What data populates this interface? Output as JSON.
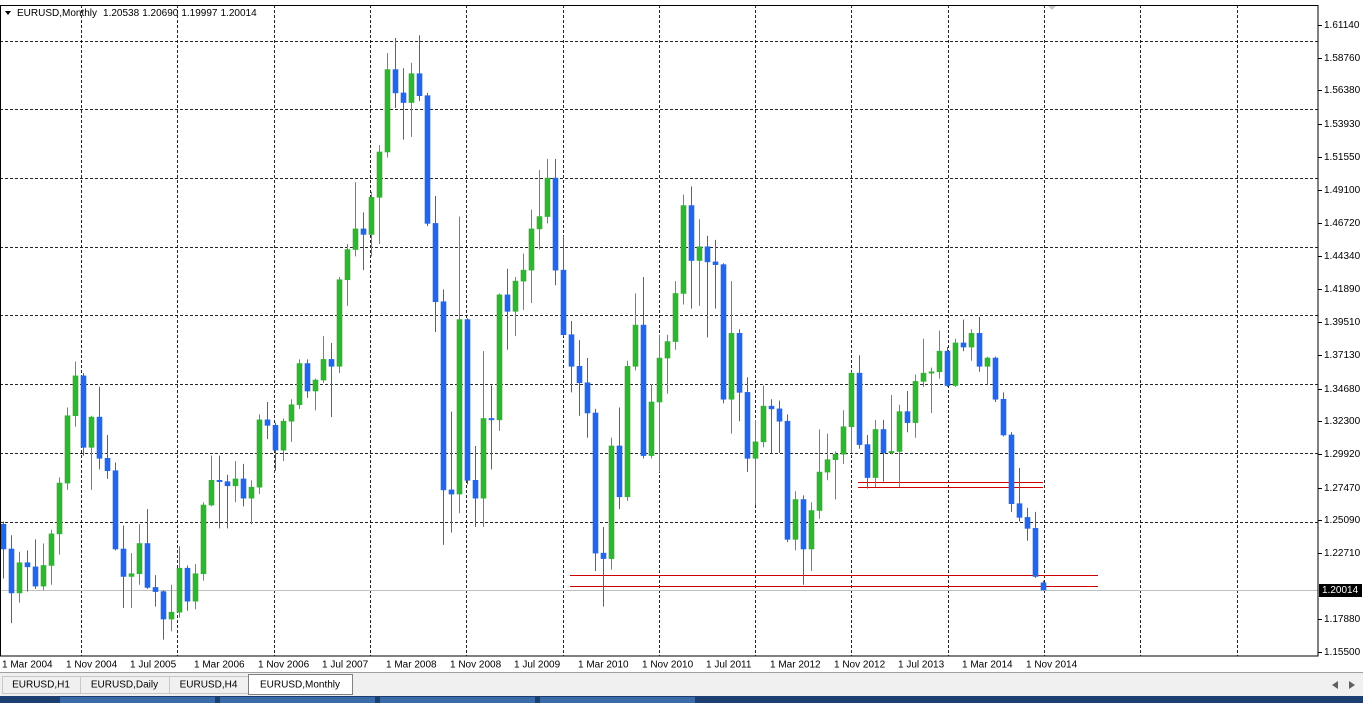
{
  "chart_data": {
    "type": "candlestick",
    "title": "EURUSD,Monthly",
    "ohlc_labels": [
      "1.20538",
      "1.20690",
      "1.19997",
      "1.20014"
    ],
    "categories": [
      "1 Mar 2004",
      null,
      null,
      null,
      null,
      null,
      null,
      null,
      "1 Nov 2004",
      null,
      null,
      null,
      null,
      null,
      null,
      null,
      "1 Jul 2005",
      null,
      null,
      null,
      null,
      null,
      null,
      null,
      "1 Mar 2006",
      null,
      null,
      null,
      null,
      null,
      null,
      null,
      "1 Nov 2006",
      null,
      null,
      null,
      null,
      null,
      null,
      null,
      "1 Jul 2007",
      null,
      null,
      null,
      null,
      null,
      null,
      null,
      "1 Mar 2008",
      null,
      null,
      null,
      null,
      null,
      null,
      null,
      "1 Nov 2008",
      null,
      null,
      null,
      null,
      null,
      null,
      null,
      "1 Jul 2009",
      null,
      null,
      null,
      null,
      null,
      null,
      null,
      "1 Mar 2010",
      null,
      null,
      null,
      null,
      null,
      null,
      null,
      "1 Nov 2010",
      null,
      null,
      null,
      null,
      null,
      null,
      null,
      "1 Jul 2011",
      null,
      null,
      null,
      null,
      null,
      null,
      null,
      "1 Mar 2012",
      null,
      null,
      null,
      null,
      null,
      null,
      null,
      "1 Nov 2012",
      null,
      null,
      null,
      null,
      null,
      null,
      null,
      "1 Jul 2013",
      null,
      null,
      null,
      null,
      null,
      null,
      null,
      "1 Mar 2014",
      null,
      null,
      null,
      null,
      null,
      null,
      null,
      "1 Nov 2014",
      null,
      null
    ],
    "open": [
      1.248,
      1.23,
      1.198,
      1.22,
      1.217,
      1.203,
      1.218,
      1.241,
      1.278,
      1.327,
      1.356,
      1.304,
      1.326,
      1.296,
      1.287,
      1.23,
      1.21,
      1.212,
      1.234,
      1.202,
      1.199,
      1.179,
      1.184,
      1.216,
      1.192,
      1.212,
      1.262,
      1.28,
      1.279,
      1.276,
      1.281,
      1.267,
      1.275,
      1.324,
      1.32,
      1.302,
      1.323,
      1.335,
      1.365,
      1.345,
      1.353,
      1.368,
      1.363,
      1.426,
      1.448,
      1.463,
      1.459,
      1.486,
      1.519,
      1.579,
      1.562,
      1.555,
      1.576,
      1.56,
      1.467,
      1.41,
      1.273,
      1.27,
      1.397,
      1.28,
      1.267,
      1.325,
      1.324,
      1.415,
      1.403,
      1.425,
      1.433,
      1.463,
      1.472,
      1.5,
      1.433,
      1.386,
      1.363,
      1.351,
      1.329,
      1.227,
      1.223,
      1.305,
      1.268,
      1.363,
      1.393,
      1.298,
      1.337,
      1.369,
      1.381,
      1.416,
      1.48,
      1.44,
      1.45,
      1.439,
      1.437,
      1.339,
      1.387,
      1.344,
      1.296,
      1.308,
      1.334,
      1.332,
      1.323,
      1.237,
      1.266,
      1.23,
      1.258,
      1.286,
      1.295,
      1.299,
      1.319,
      1.358,
      1.306,
      1.282,
      1.317,
      1.3,
      1.301,
      1.33,
      1.322,
      1.352,
      1.358,
      1.359,
      1.374,
      1.349,
      1.38,
      1.377,
      1.387,
      1.363,
      1.369,
      1.339,
      1.313,
      1.263,
      1.253,
      1.245,
      1.20538
    ],
    "high": [
      1.25,
      1.24,
      1.228,
      1.229,
      1.237,
      1.234,
      1.244,
      1.282,
      1.333,
      1.3665,
      1.358,
      1.327,
      1.348,
      1.313,
      1.293,
      1.247,
      1.227,
      1.248,
      1.259,
      1.211,
      1.2,
      1.204,
      1.232,
      1.218,
      1.219,
      1.264,
      1.298,
      1.298,
      1.284,
      1.294,
      1.292,
      1.28,
      1.328,
      1.337,
      1.322,
      1.325,
      1.339,
      1.368,
      1.368,
      1.354,
      1.385,
      1.38,
      1.428,
      1.452,
      1.497,
      1.475,
      1.49,
      1.524,
      1.591,
      1.602,
      1.58,
      1.584,
      1.604,
      1.562,
      1.487,
      1.419,
      1.33,
      1.472,
      1.398,
      1.305,
      1.374,
      1.349,
      1.416,
      1.434,
      1.428,
      1.445,
      1.477,
      1.506,
      1.514,
      1.514,
      1.458,
      1.396,
      1.382,
      1.369,
      1.332,
      1.246,
      1.311,
      1.333,
      1.367,
      1.416,
      1.428,
      1.35,
      1.386,
      1.386,
      1.425,
      1.488,
      1.494,
      1.47,
      1.458,
      1.455,
      1.438,
      1.425,
      1.39,
      1.355,
      1.324,
      1.349,
      1.339,
      1.338,
      1.328,
      1.272,
      1.269,
      1.264,
      1.317,
      1.314,
      1.301,
      1.331,
      1.359,
      1.371,
      1.313,
      1.324,
      1.324,
      1.342,
      1.335,
      1.345,
      1.357,
      1.383,
      1.362,
      1.389,
      1.377,
      1.383,
      1.397,
      1.39,
      1.399,
      1.37,
      1.37,
      1.344,
      1.315,
      1.289,
      1.26,
      1.257,
      1.2069
    ],
    "low": [
      1.2085,
      1.176,
      1.191,
      1.199,
      1.201,
      1.2,
      1.204,
      1.226,
      1.273,
      1.319,
      1.298,
      1.273,
      1.288,
      1.281,
      1.229,
      1.187,
      1.187,
      1.204,
      1.201,
      1.188,
      1.164,
      1.17,
      1.18,
      1.185,
      1.186,
      1.207,
      1.261,
      1.245,
      1.245,
      1.264,
      1.261,
      1.248,
      1.27,
      1.31,
      1.287,
      1.294,
      1.308,
      1.332,
      1.34,
      1.331,
      1.351,
      1.326,
      1.358,
      1.407,
      1.443,
      1.433,
      1.443,
      1.452,
      1.515,
      1.551,
      1.528,
      1.53,
      1.556,
      1.465,
      1.388,
      1.233,
      1.242,
      1.256,
      1.277,
      1.246,
      1.246,
      1.288,
      1.316,
      1.375,
      1.385,
      1.404,
      1.409,
      1.448,
      1.467,
      1.422,
      1.385,
      1.344,
      1.327,
      1.311,
      1.214,
      1.188,
      1.215,
      1.259,
      1.265,
      1.36,
      1.296,
      1.296,
      1.286,
      1.343,
      1.375,
      1.408,
      1.405,
      1.407,
      1.384,
      1.405,
      1.336,
      1.314,
      1.323,
      1.286,
      1.262,
      1.304,
      1.3,
      1.3,
      1.235,
      1.229,
      1.204,
      1.214,
      1.252,
      1.28,
      1.266,
      1.292,
      1.3,
      1.303,
      1.274,
      1.275,
      1.279,
      1.299,
      1.275,
      1.315,
      1.311,
      1.348,
      1.329,
      1.354,
      1.348,
      1.348,
      1.374,
      1.367,
      1.359,
      1.35,
      1.337,
      1.312,
      1.257,
      1.25,
      1.236,
      1.209,
      1.19997
    ],
    "close": [
      1.23,
      1.198,
      1.22,
      1.217,
      1.203,
      1.218,
      1.241,
      1.278,
      1.327,
      1.356,
      1.304,
      1.326,
      1.296,
      1.287,
      1.23,
      1.21,
      1.212,
      1.234,
      1.202,
      1.199,
      1.179,
      1.184,
      1.216,
      1.192,
      1.212,
      1.262,
      1.28,
      1.279,
      1.276,
      1.281,
      1.267,
      1.275,
      1.324,
      1.32,
      1.302,
      1.323,
      1.335,
      1.365,
      1.345,
      1.353,
      1.368,
      1.363,
      1.426,
      1.448,
      1.463,
      1.459,
      1.486,
      1.519,
      1.579,
      1.562,
      1.555,
      1.576,
      1.56,
      1.467,
      1.41,
      1.273,
      1.27,
      1.397,
      1.28,
      1.267,
      1.325,
      1.324,
      1.415,
      1.403,
      1.425,
      1.433,
      1.463,
      1.472,
      1.5,
      1.433,
      1.386,
      1.363,
      1.351,
      1.329,
      1.227,
      1.223,
      1.305,
      1.268,
      1.363,
      1.393,
      1.298,
      1.337,
      1.369,
      1.381,
      1.416,
      1.48,
      1.44,
      1.45,
      1.439,
      1.437,
      1.339,
      1.387,
      1.344,
      1.296,
      1.308,
      1.334,
      1.332,
      1.323,
      1.237,
      1.266,
      1.23,
      1.258,
      1.286,
      1.295,
      1.299,
      1.319,
      1.358,
      1.306,
      1.282,
      1.317,
      1.3,
      1.301,
      1.33,
      1.322,
      1.352,
      1.358,
      1.359,
      1.374,
      1.349,
      1.38,
      1.377,
      1.387,
      1.363,
      1.369,
      1.339,
      1.313,
      1.263,
      1.253,
      1.245,
      1.21,
      1.20014
    ],
    "up_color": "#2fb52f",
    "down_color": "#2266ee",
    "ylim": [
      1.1521,
      1.626
    ],
    "yticks": [
      {
        "value": 1.6114,
        "label": "1.61140"
      },
      {
        "value": 1.5876,
        "label": "1.58760"
      },
      {
        "value": 1.5638,
        "label": "1.56380"
      },
      {
        "value": 1.5393,
        "label": "1.53930"
      },
      {
        "value": 1.5155,
        "label": "1.51550"
      },
      {
        "value": 1.491,
        "label": "1.49100"
      },
      {
        "value": 1.4672,
        "label": "1.46720"
      },
      {
        "value": 1.4434,
        "label": "1.44340"
      },
      {
        "value": 1.4189,
        "label": "1.41890"
      },
      {
        "value": 1.3951,
        "label": "1.39510"
      },
      {
        "value": 1.3713,
        "label": "1.37130"
      },
      {
        "value": 1.3468,
        "label": "1.34680"
      },
      {
        "value": 1.323,
        "label": "1.32300"
      },
      {
        "value": 1.2992,
        "label": "1.29920"
      },
      {
        "value": 1.2747,
        "label": "1.27470"
      },
      {
        "value": 1.2509,
        "label": "1.25090"
      },
      {
        "value": 1.2271,
        "label": "1.22710"
      },
      {
        "value": 1.1788,
        "label": "1.17880"
      },
      {
        "value": 1.155,
        "label": "1.15500"
      }
    ],
    "ygrid": [
      1.2,
      1.25,
      1.3,
      1.35,
      1.4,
      1.45,
      1.5,
      1.55,
      1.6
    ],
    "grid": true,
    "current_price": {
      "value": 1.20014,
      "label": "1.20014"
    },
    "hlines": [
      1.2111,
      1.203,
      1.2787,
      1.2751
    ],
    "hline_color": "#cc0000"
  },
  "tabs": [
    "EURUSD,H1",
    "EURUSD,Daily",
    "EURUSD,H4",
    "EURUSD,Monthly"
  ],
  "active_tab": 3
}
